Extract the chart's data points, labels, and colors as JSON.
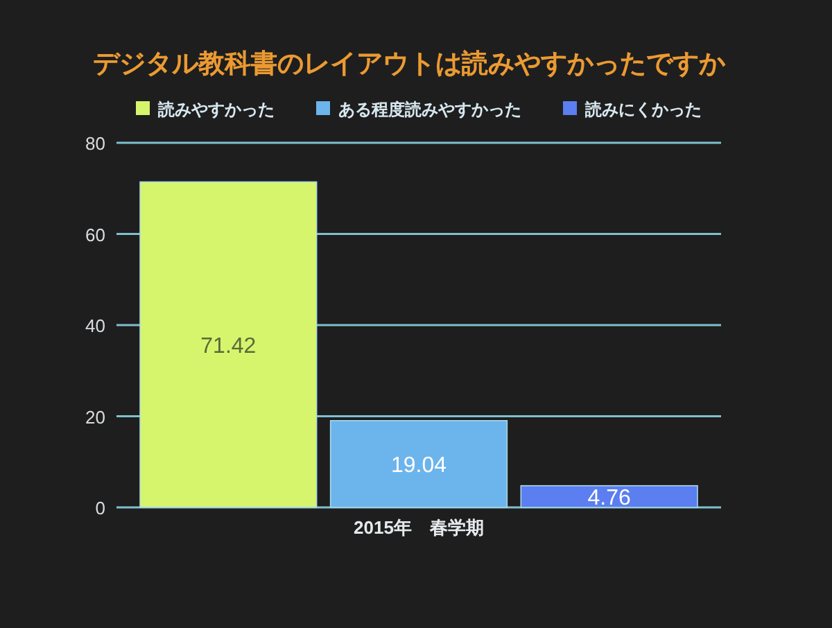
{
  "chart_data": {
    "type": "bar",
    "title": "デジタル教科書のレイアウトは読みやすかったですか",
    "categories": [
      "2015年　春学期"
    ],
    "series": [
      {
        "name": "読みやすかった",
        "color": "#d6f56c",
        "values": [
          71.42
        ]
      },
      {
        "name": "ある程度読みやすかった",
        "color": "#6cb4ec",
        "values": [
          19.04
        ]
      },
      {
        "name": "読みにくかった",
        "color": "#5b7ef0",
        "values": [
          4.76
        ]
      }
    ],
    "ylim": [
      0,
      80
    ],
    "yticks": [
      0,
      20,
      40,
      60,
      80
    ],
    "grid": "y",
    "legend": "top",
    "data_labels": true
  }
}
